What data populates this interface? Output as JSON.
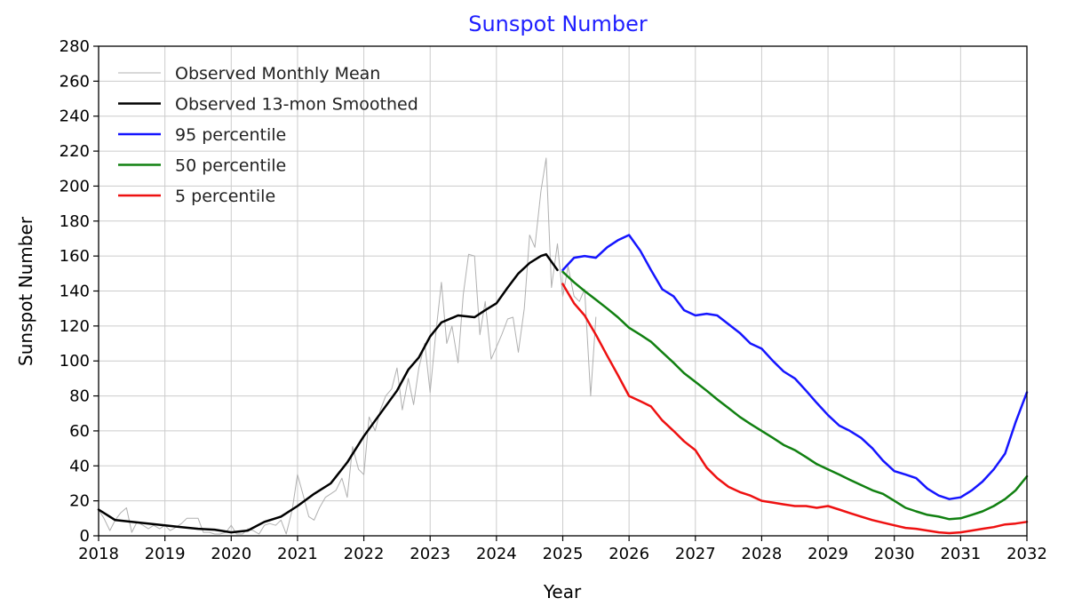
{
  "chart_data": {
    "type": "line",
    "title": "Sunspot Number",
    "title_color": "#1f1fff",
    "xlabel": "Year",
    "ylabel": "Sunspot Number",
    "xlim": [
      2018,
      2032
    ],
    "ylim": [
      0,
      280
    ],
    "x_ticks": [
      2018,
      2019,
      2020,
      2021,
      2022,
      2023,
      2024,
      2025,
      2026,
      2027,
      2028,
      2029,
      2030,
      2031,
      2032
    ],
    "x_tick_labels": [
      "2018",
      "2019",
      "2020",
      "2021",
      "2022",
      "2023",
      "2024",
      "2025",
      "2026",
      "2027",
      "2028",
      "2029",
      "2030",
      "2031",
      "2032"
    ],
    "y_ticks": [
      0,
      20,
      40,
      60,
      80,
      100,
      120,
      140,
      160,
      180,
      200,
      220,
      240,
      260,
      280
    ],
    "y_tick_labels": [
      "0",
      "20",
      "40",
      "60",
      "80",
      "100",
      "120",
      "140",
      "160",
      "180",
      "200",
      "220",
      "240",
      "260",
      "280"
    ],
    "grid": true,
    "legend_position": "top-left",
    "series": [
      {
        "name": "Observed Monthly Mean",
        "color": "#b0b0b0",
        "width": 1,
        "points": [
          [
            2018.0,
            15
          ],
          [
            2018.08,
            10
          ],
          [
            2018.17,
            3
          ],
          [
            2018.25,
            9
          ],
          [
            2018.33,
            13
          ],
          [
            2018.42,
            16
          ],
          [
            2018.5,
            2
          ],
          [
            2018.58,
            8
          ],
          [
            2018.67,
            6
          ],
          [
            2018.75,
            4
          ],
          [
            2018.83,
            6
          ],
          [
            2018.92,
            4
          ],
          [
            2019.0,
            6
          ],
          [
            2019.08,
            3
          ],
          [
            2019.17,
            5
          ],
          [
            2019.25,
            7
          ],
          [
            2019.33,
            10
          ],
          [
            2019.42,
            10
          ],
          [
            2019.5,
            10
          ],
          [
            2019.58,
            2
          ],
          [
            2019.67,
            2
          ],
          [
            2019.75,
            1
          ],
          [
            2019.83,
            1
          ],
          [
            2019.92,
            2
          ],
          [
            2020.0,
            6
          ],
          [
            2020.08,
            1
          ],
          [
            2020.17,
            1
          ],
          [
            2020.25,
            4
          ],
          [
            2020.33,
            3
          ],
          [
            2020.42,
            1
          ],
          [
            2020.5,
            6
          ],
          [
            2020.58,
            7
          ],
          [
            2020.67,
            6
          ],
          [
            2020.75,
            9
          ],
          [
            2020.83,
            1
          ],
          [
            2020.92,
            15
          ],
          [
            2021.0,
            35
          ],
          [
            2021.08,
            24
          ],
          [
            2021.17,
            11
          ],
          [
            2021.25,
            9
          ],
          [
            2021.33,
            16
          ],
          [
            2021.42,
            22
          ],
          [
            2021.5,
            24
          ],
          [
            2021.58,
            26
          ],
          [
            2021.67,
            33
          ],
          [
            2021.75,
            22
          ],
          [
            2021.83,
            51
          ],
          [
            2021.92,
            38
          ],
          [
            2022.0,
            35
          ],
          [
            2022.08,
            68
          ],
          [
            2022.17,
            60
          ],
          [
            2022.25,
            72
          ],
          [
            2022.33,
            80
          ],
          [
            2022.42,
            84
          ],
          [
            2022.5,
            96
          ],
          [
            2022.58,
            72
          ],
          [
            2022.67,
            90
          ],
          [
            2022.75,
            75
          ],
          [
            2022.83,
            96
          ],
          [
            2022.92,
            110
          ],
          [
            2023.0,
            82
          ],
          [
            2023.08,
            114
          ],
          [
            2023.17,
            145
          ],
          [
            2023.25,
            110
          ],
          [
            2023.33,
            120
          ],
          [
            2023.42,
            99
          ],
          [
            2023.5,
            138
          ],
          [
            2023.58,
            161
          ],
          [
            2023.67,
            160
          ],
          [
            2023.75,
            115
          ],
          [
            2023.83,
            134
          ],
          [
            2023.92,
            101
          ],
          [
            2024.0,
            108
          ],
          [
            2024.08,
            115
          ],
          [
            2024.17,
            124
          ],
          [
            2024.25,
            125
          ],
          [
            2024.33,
            105
          ],
          [
            2024.42,
            130
          ],
          [
            2024.5,
            172
          ],
          [
            2024.58,
            165
          ],
          [
            2024.67,
            197
          ],
          [
            2024.75,
            216
          ],
          [
            2024.83,
            142
          ],
          [
            2024.92,
            167
          ],
          [
            2025.0,
            137
          ],
          [
            2025.08,
            154
          ],
          [
            2025.17,
            137
          ],
          [
            2025.25,
            134
          ],
          [
            2025.33,
            141
          ],
          [
            2025.42,
            80
          ],
          [
            2025.5,
            125
          ]
        ]
      },
      {
        "name": "Observed 13-mon Smoothed",
        "color": "#000000",
        "width": 2.5,
        "points": [
          [
            2018.0,
            15
          ],
          [
            2018.25,
            9
          ],
          [
            2018.5,
            8
          ],
          [
            2018.75,
            7
          ],
          [
            2019.0,
            6
          ],
          [
            2019.25,
            5
          ],
          [
            2019.5,
            4
          ],
          [
            2019.75,
            3.5
          ],
          [
            2020.0,
            2
          ],
          [
            2020.25,
            3
          ],
          [
            2020.5,
            8
          ],
          [
            2020.75,
            11
          ],
          [
            2021.0,
            17
          ],
          [
            2021.25,
            24
          ],
          [
            2021.5,
            30
          ],
          [
            2021.75,
            42
          ],
          [
            2022.0,
            57
          ],
          [
            2022.25,
            70
          ],
          [
            2022.5,
            83
          ],
          [
            2022.67,
            95
          ],
          [
            2022.83,
            102
          ],
          [
            2023.0,
            114
          ],
          [
            2023.17,
            122
          ],
          [
            2023.42,
            126
          ],
          [
            2023.67,
            125
          ],
          [
            2023.83,
            129
          ],
          [
            2024.0,
            133
          ],
          [
            2024.17,
            142
          ],
          [
            2024.33,
            150
          ],
          [
            2024.5,
            156
          ],
          [
            2024.67,
            160
          ],
          [
            2024.75,
            161
          ],
          [
            2024.92,
            152
          ]
        ]
      },
      {
        "name": "95 percentile",
        "color": "#1515ff",
        "width": 2.5,
        "points": [
          [
            2025.0,
            152
          ],
          [
            2025.17,
            159
          ],
          [
            2025.33,
            160
          ],
          [
            2025.5,
            159
          ],
          [
            2025.67,
            165
          ],
          [
            2025.83,
            169
          ],
          [
            2026.0,
            172
          ],
          [
            2026.17,
            163
          ],
          [
            2026.33,
            152
          ],
          [
            2026.5,
            141
          ],
          [
            2026.67,
            137
          ],
          [
            2026.83,
            129
          ],
          [
            2027.0,
            126
          ],
          [
            2027.17,
            127
          ],
          [
            2027.33,
            126
          ],
          [
            2027.5,
            121
          ],
          [
            2027.67,
            116
          ],
          [
            2027.83,
            110
          ],
          [
            2028.0,
            107
          ],
          [
            2028.17,
            100
          ],
          [
            2028.33,
            94
          ],
          [
            2028.5,
            90
          ],
          [
            2028.67,
            83
          ],
          [
            2028.83,
            76
          ],
          [
            2029.0,
            69
          ],
          [
            2029.17,
            63
          ],
          [
            2029.33,
            60
          ],
          [
            2029.5,
            56
          ],
          [
            2029.67,
            50
          ],
          [
            2029.83,
            43
          ],
          [
            2030.0,
            37
          ],
          [
            2030.17,
            35
          ],
          [
            2030.33,
            33
          ],
          [
            2030.5,
            27
          ],
          [
            2030.67,
            23
          ],
          [
            2030.83,
            21
          ],
          [
            2031.0,
            22
          ],
          [
            2031.17,
            26
          ],
          [
            2031.33,
            31
          ],
          [
            2031.5,
            38
          ],
          [
            2031.67,
            47
          ],
          [
            2031.83,
            65
          ],
          [
            2032.0,
            82
          ]
        ]
      },
      {
        "name": "50 percentile",
        "color": "#118011",
        "width": 2.5,
        "points": [
          [
            2025.0,
            151
          ],
          [
            2025.17,
            145
          ],
          [
            2025.33,
            140
          ],
          [
            2025.5,
            135
          ],
          [
            2025.67,
            130
          ],
          [
            2025.83,
            125
          ],
          [
            2026.0,
            119
          ],
          [
            2026.17,
            115
          ],
          [
            2026.33,
            111
          ],
          [
            2026.5,
            105
          ],
          [
            2026.67,
            99
          ],
          [
            2026.83,
            93
          ],
          [
            2027.0,
            88
          ],
          [
            2027.17,
            83
          ],
          [
            2027.33,
            78
          ],
          [
            2027.5,
            73
          ],
          [
            2027.67,
            68
          ],
          [
            2027.83,
            64
          ],
          [
            2028.0,
            60
          ],
          [
            2028.17,
            56
          ],
          [
            2028.33,
            52
          ],
          [
            2028.5,
            49
          ],
          [
            2028.67,
            45
          ],
          [
            2028.83,
            41
          ],
          [
            2029.0,
            38
          ],
          [
            2029.17,
            35
          ],
          [
            2029.33,
            32
          ],
          [
            2029.5,
            29
          ],
          [
            2029.67,
            26
          ],
          [
            2029.83,
            24
          ],
          [
            2030.0,
            20
          ],
          [
            2030.17,
            16
          ],
          [
            2030.33,
            14
          ],
          [
            2030.5,
            12
          ],
          [
            2030.67,
            11
          ],
          [
            2030.83,
            9.5
          ],
          [
            2031.0,
            10
          ],
          [
            2031.17,
            12
          ],
          [
            2031.33,
            14
          ],
          [
            2031.5,
            17
          ],
          [
            2031.67,
            21
          ],
          [
            2031.83,
            26
          ],
          [
            2032.0,
            34
          ]
        ]
      },
      {
        "name": "5 percentile",
        "color": "#ee1111",
        "width": 2.5,
        "points": [
          [
            2025.0,
            144
          ],
          [
            2025.17,
            133
          ],
          [
            2025.33,
            126
          ],
          [
            2025.5,
            115
          ],
          [
            2025.67,
            103
          ],
          [
            2025.83,
            92
          ],
          [
            2026.0,
            80
          ],
          [
            2026.17,
            77
          ],
          [
            2026.33,
            74
          ],
          [
            2026.5,
            66
          ],
          [
            2026.67,
            60
          ],
          [
            2026.83,
            54
          ],
          [
            2027.0,
            49
          ],
          [
            2027.17,
            39
          ],
          [
            2027.33,
            33
          ],
          [
            2027.5,
            28
          ],
          [
            2027.67,
            25
          ],
          [
            2027.83,
            23
          ],
          [
            2028.0,
            20
          ],
          [
            2028.17,
            19
          ],
          [
            2028.33,
            18
          ],
          [
            2028.5,
            17
          ],
          [
            2028.67,
            17
          ],
          [
            2028.83,
            16
          ],
          [
            2029.0,
            17
          ],
          [
            2029.17,
            15
          ],
          [
            2029.33,
            13
          ],
          [
            2029.5,
            11
          ],
          [
            2029.67,
            9
          ],
          [
            2029.83,
            7.5
          ],
          [
            2030.0,
            6
          ],
          [
            2030.17,
            4.5
          ],
          [
            2030.33,
            4
          ],
          [
            2030.5,
            3
          ],
          [
            2030.67,
            2
          ],
          [
            2030.83,
            1.5
          ],
          [
            2031.0,
            2
          ],
          [
            2031.17,
            3
          ],
          [
            2031.33,
            4
          ],
          [
            2031.5,
            5
          ],
          [
            2031.67,
            6.5
          ],
          [
            2031.83,
            7
          ],
          [
            2032.0,
            8
          ]
        ]
      }
    ]
  }
}
